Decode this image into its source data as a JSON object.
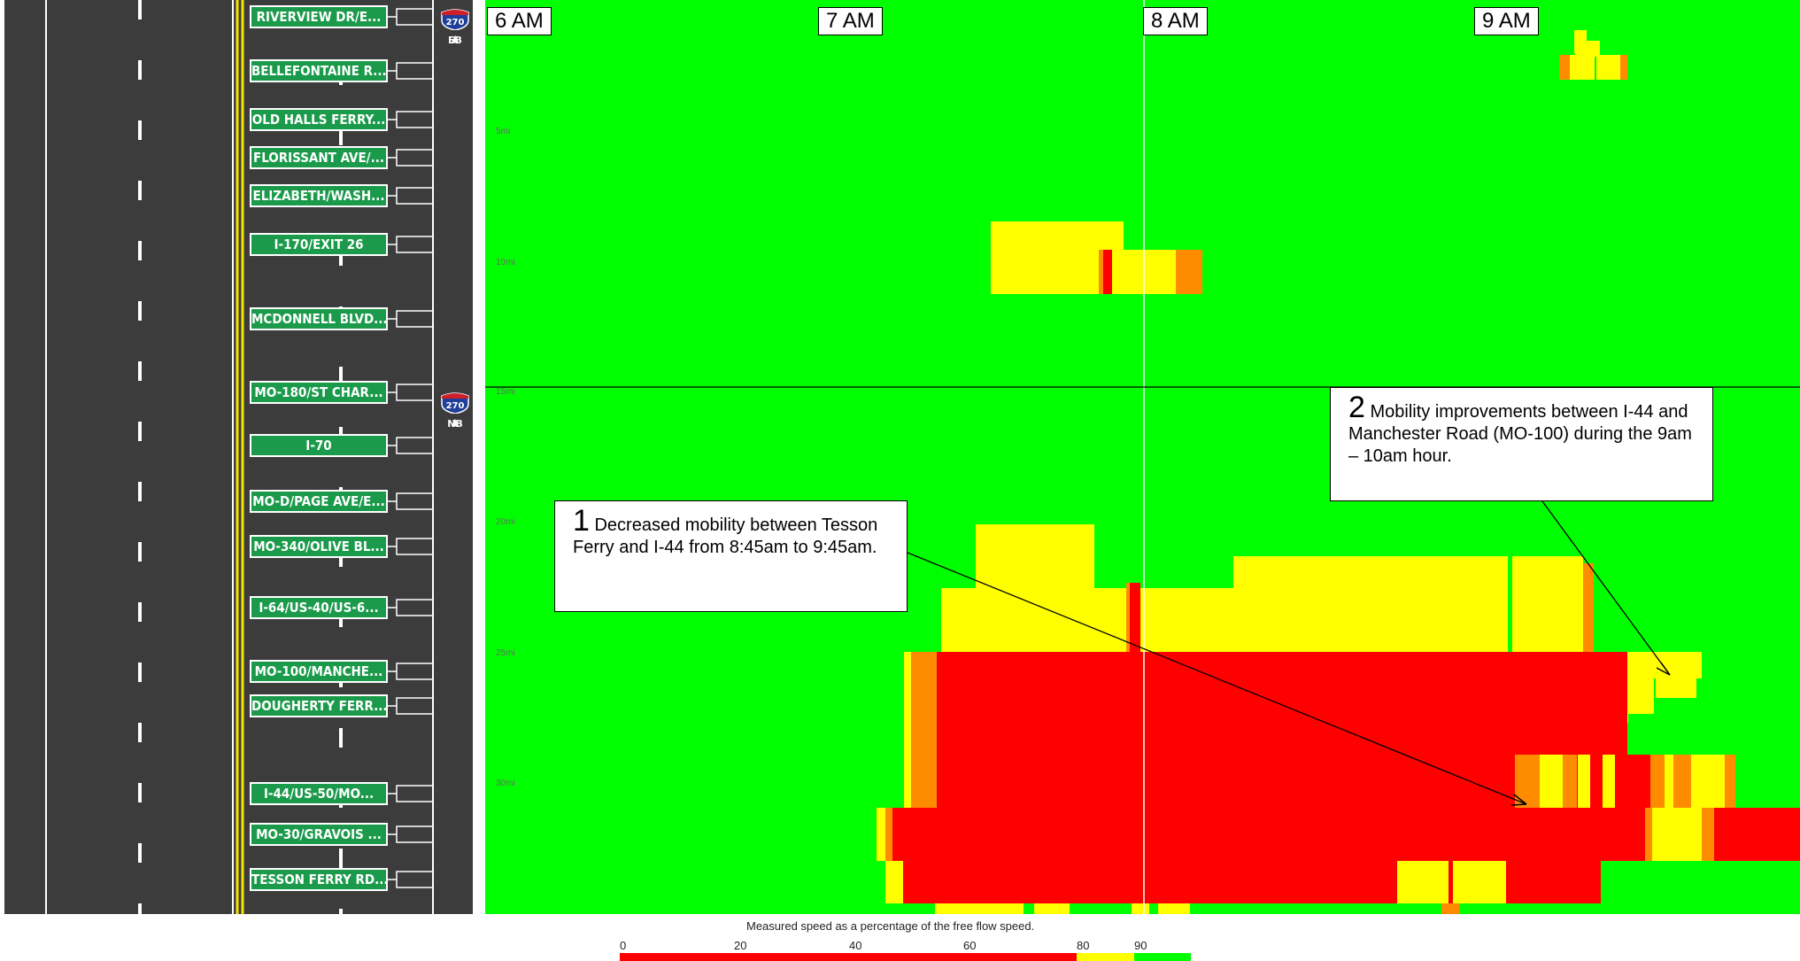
{
  "road_signs": [
    {
      "label": "RIVERVIEW DR/E..."
    },
    {
      "label": "BELLEFONTAINE R..."
    },
    {
      "label": "OLD HALLS FERRY..."
    },
    {
      "label": "FLORISSANT AVE/..."
    },
    {
      "label": "ELIZABETH/WASH..."
    },
    {
      "label": "I-170/EXIT 26"
    },
    {
      "label": "MCDONNELL BLVD..."
    },
    {
      "label": "MO-180/ST CHAR..."
    },
    {
      "label": "I-70"
    },
    {
      "label": "MO-D/PAGE AVE/E..."
    },
    {
      "label": "MO-340/OLIVE BL..."
    },
    {
      "label": "I-64/US-40/US-6..."
    },
    {
      "label": "MO-100/MANCHE..."
    },
    {
      "label": "DOUGHERTY FERR..."
    },
    {
      "label": "I-44/US-50/MO..."
    },
    {
      "label": "MO-30/GRAVOIS ..."
    },
    {
      "label": "TESSON FERRY RD..."
    }
  ],
  "shields": [
    {
      "route": "270",
      "direction": "EB",
      "icon": "interstate-shield-icon"
    },
    {
      "route": "270",
      "direction": "NB",
      "icon": "interstate-shield-icon"
    }
  ],
  "annotations": [
    {
      "number": "1",
      "text": "Decreased mobility between Tesson Ferry and I-44 from 8:45am to 9:45am."
    },
    {
      "number": "2",
      "text": "Mobility improvements between I-44 and Manchester Road (MO-100) during the 9am – 10am hour."
    }
  ],
  "chart_data": {
    "type": "heatmap",
    "title": "",
    "x_axis": {
      "ticks": [
        "6 AM",
        "7 AM",
        "8 AM",
        "9 AM"
      ],
      "unit": "time of day"
    },
    "y_axis": {
      "ticks": [
        "5mi",
        "10mi",
        "15mi",
        "20mi",
        "25mi",
        "30mi"
      ],
      "unit": "miles"
    },
    "legend": {
      "title": "Measured speed as a percentage of the free flow speed.",
      "ticks": [
        "0",
        "20",
        "40",
        "60",
        "80",
        "90"
      ],
      "bins": [
        {
          "from": 0,
          "to": 80,
          "color": "#ff0000"
        },
        {
          "from": 80,
          "to": 90,
          "color": "#ffff00"
        },
        {
          "from": 90,
          "to": 100,
          "color": "#00ff00"
        }
      ]
    },
    "colors": {
      "free_flow": "#00ff00",
      "moderate": "#ffff00",
      "congested": "#ff0000",
      "transition": "#ff8c00"
    }
  }
}
